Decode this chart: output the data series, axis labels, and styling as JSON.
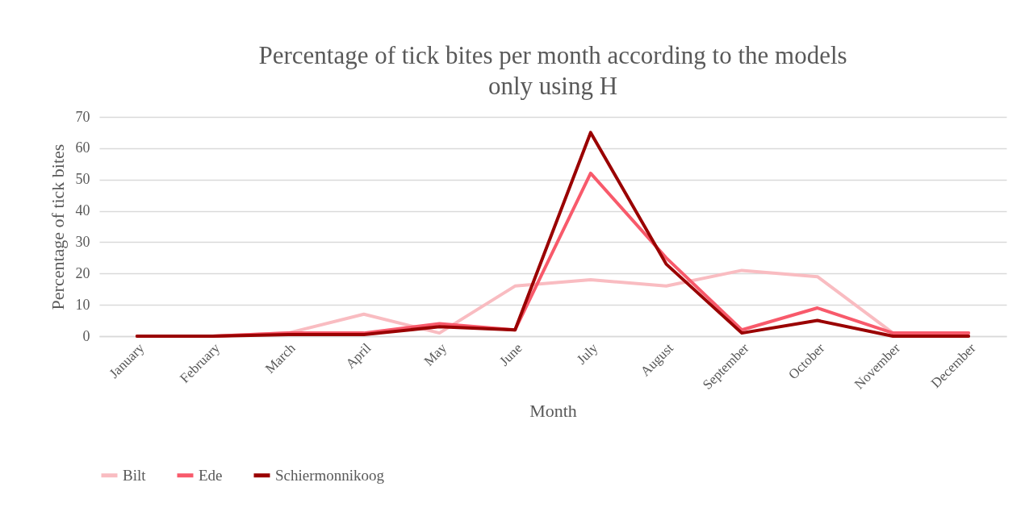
{
  "chart_data": {
    "type": "line",
    "title": "Percentage of tick bites per month according to the models only using H",
    "xlabel": "Month",
    "ylabel": "Percentage of tick bites",
    "categories": [
      "January",
      "February",
      "March",
      "April",
      "May",
      "June",
      "July",
      "August",
      "September",
      "October",
      "November",
      "December"
    ],
    "series": [
      {
        "name": "Bilt",
        "color": "#f9bcc1",
        "values": [
          0,
          0,
          1,
          7,
          1,
          16,
          18,
          16,
          21,
          19,
          1,
          1
        ]
      },
      {
        "name": "Ede",
        "color": "#f85a6b",
        "values": [
          0,
          0,
          1,
          1,
          4,
          2,
          52,
          25,
          2,
          9,
          1,
          1
        ]
      },
      {
        "name": "Schiermonnikoog",
        "color": "#9a0000",
        "values": [
          0,
          0,
          0.5,
          0.5,
          3,
          2,
          65,
          23,
          1,
          5,
          0,
          0
        ]
      }
    ],
    "ylim": [
      0,
      70
    ],
    "yticks": [
      0,
      10,
      20,
      30,
      40,
      50,
      60,
      70
    ],
    "grid": "y",
    "legend": "bottom",
    "marker": "none",
    "line_style": "solid"
  }
}
